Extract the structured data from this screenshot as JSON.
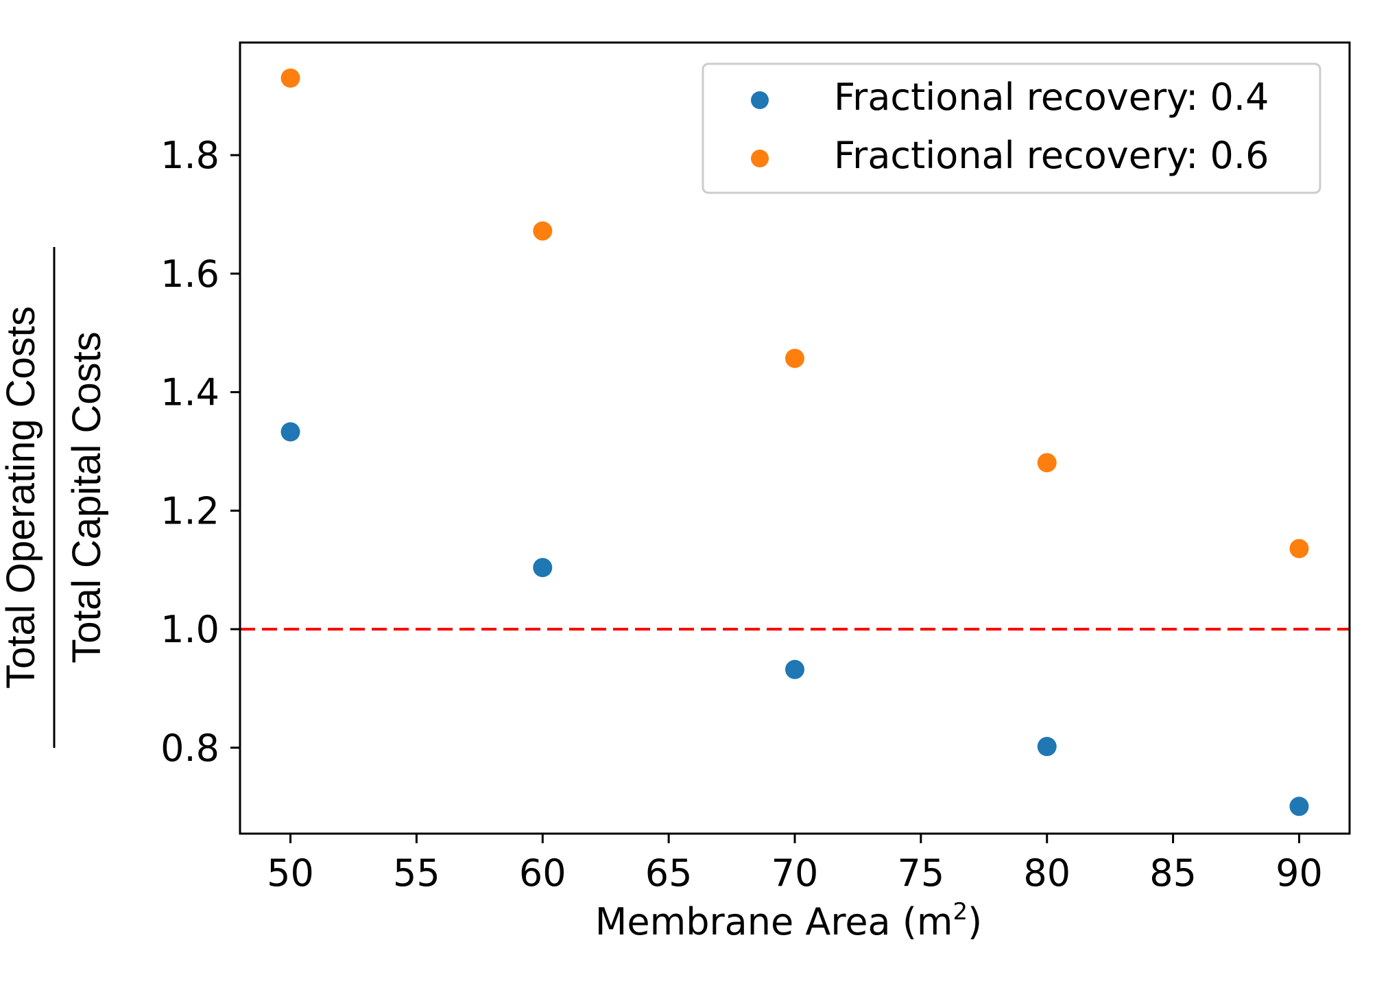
{
  "chart_data": {
    "type": "scatter",
    "x": [
      50,
      60,
      70,
      80,
      90
    ],
    "series": [
      {
        "name": "Fractional recovery: 0.4",
        "color": "#1f77b4",
        "values": [
          1.333,
          1.104,
          0.932,
          0.802,
          0.701
        ]
      },
      {
        "name": "Fractional recovery: 0.6",
        "color": "#ff7f0e",
        "values": [
          1.93,
          1.672,
          1.457,
          1.281,
          1.136
        ]
      }
    ],
    "xlabel": "Membrane Area (m",
    "xlabel_sup": "2",
    "xlabel_close": ")",
    "ylabel_numerator": "Total Operating Costs",
    "ylabel_denominator": "Total Capital Costs",
    "xlim": [
      48,
      92
    ],
    "ylim": [
      0.655,
      1.99
    ],
    "xticks": [
      "50",
      "55",
      "60",
      "65",
      "70",
      "75",
      "80",
      "85",
      "90"
    ],
    "yticks": [
      "0.8",
      "1.0",
      "1.2",
      "1.4",
      "1.6",
      "1.8"
    ],
    "reference_line": {
      "y": 1.0,
      "color": "#ff0000",
      "style": "dashed"
    },
    "legend_position": "top-right",
    "grid": false
  }
}
